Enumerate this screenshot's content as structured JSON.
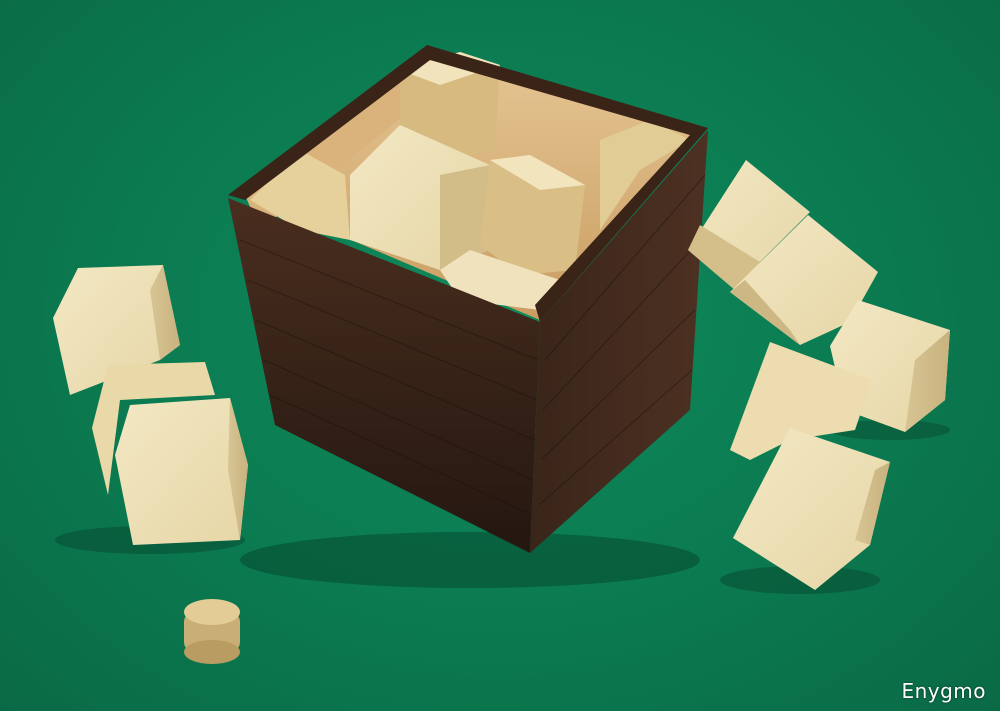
{
  "photo": {
    "watermark": "Enygmo",
    "colors": {
      "felt": "#0b7a50",
      "box_wood": "#3a2418",
      "cube_wood": "#e8d9ac",
      "cork": "#d9c08a"
    }
  }
}
